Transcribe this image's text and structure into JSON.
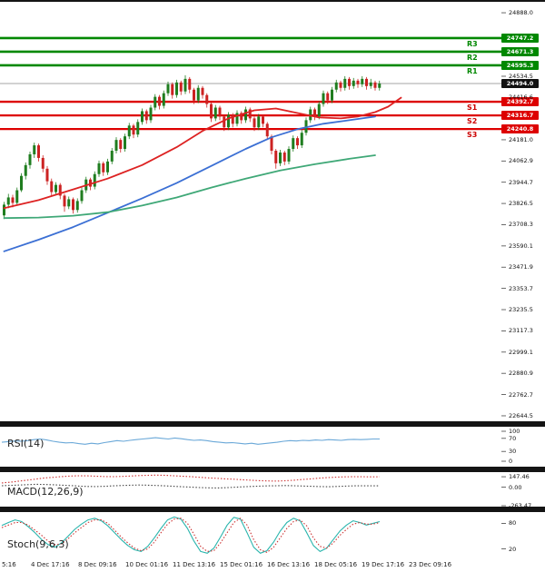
{
  "colors": {
    "bull": "#1f7d1f",
    "bear": "#cc2222",
    "resistance": "#008800",
    "support": "#dd0000",
    "ma_fast": "#dd2222",
    "ma_mid": "#3b6fd4",
    "ma_slow": "#3fa877",
    "rsi": "#6aa8d8",
    "macd_signal": "#cc3333",
    "macd_line": "#444444",
    "stoch_k": "#2ab5ad",
    "stoch_d": "#cc3333",
    "price_badge_bg": "#111111",
    "separator": "#141414"
  },
  "y_axis": {
    "ticks": [
      "24888.0",
      "24534.5",
      "24416.6",
      "24181.0",
      "24062.9",
      "23944.7",
      "23826.5",
      "23708.3",
      "23590.1",
      "23471.9",
      "23353.7",
      "23235.5",
      "23117.3",
      "22999.1",
      "22880.9",
      "22762.7",
      "22644.5"
    ]
  },
  "x_axis": {
    "labels": [
      "5:16",
      "4 Dec 17:16",
      "8 Dec 09:16",
      "10 Dec 01:16",
      "11 Dec 13:16",
      "15 Dec 01:16",
      "16 Dec 13:16",
      "18 Dec 05:16",
      "19 Dec 17:16",
      "23 Dec 09:16"
    ]
  },
  "chart_data": {
    "type": "candlestick",
    "main_panel": {
      "value_range": [
        22614,
        24959
      ],
      "current_price": {
        "text": "24494.0",
        "value": 24494.0
      },
      "levels": {
        "resistance": [
          {
            "label": "R3",
            "value": 24747.2,
            "text": "24747.2"
          },
          {
            "label": "R2",
            "value": 24671.3,
            "text": "24671.3"
          },
          {
            "label": "R1",
            "value": 24595.3,
            "text": "24595.3"
          }
        ],
        "support": [
          {
            "label": "S1",
            "value": 24392.7,
            "text": "24392.7"
          },
          {
            "label": "S2",
            "value": 24316.7,
            "text": "24316.7"
          },
          {
            "label": "S3",
            "value": 24240.8,
            "text": "24240.8"
          }
        ]
      },
      "candles": [
        [
          23760,
          23835,
          23740,
          23820
        ],
        [
          23820,
          23880,
          23800,
          23860
        ],
        [
          23860,
          23875,
          23805,
          23830
        ],
        [
          23830,
          23915,
          23820,
          23900
        ],
        [
          23900,
          23995,
          23890,
          23980
        ],
        [
          23980,
          24055,
          23960,
          24040
        ],
        [
          24040,
          24115,
          24020,
          24100
        ],
        [
          24100,
          24165,
          24080,
          24150
        ],
        [
          24150,
          24160,
          24060,
          24080
        ],
        [
          24080,
          24095,
          24000,
          24020
        ],
        [
          24020,
          24035,
          23930,
          23950
        ],
        [
          23950,
          23965,
          23870,
          23890
        ],
        [
          23890,
          23945,
          23875,
          23930
        ],
        [
          23930,
          23940,
          23850,
          23870
        ],
        [
          23870,
          23880,
          23780,
          23810
        ],
        [
          23810,
          23865,
          23795,
          23850
        ],
        [
          23850,
          23860,
          23770,
          23790
        ],
        [
          23790,
          23855,
          23775,
          23840
        ],
        [
          23840,
          23915,
          23825,
          23900
        ],
        [
          23900,
          23975,
          23885,
          23960
        ],
        [
          23960,
          23970,
          23900,
          23920
        ],
        [
          23920,
          24005,
          23905,
          23990
        ],
        [
          23990,
          24065,
          23975,
          24050
        ],
        [
          24050,
          24060,
          23980,
          24000
        ],
        [
          24000,
          24075,
          23985,
          24060
        ],
        [
          24060,
          24135,
          24045,
          24120
        ],
        [
          24120,
          24195,
          24105,
          24180
        ],
        [
          24180,
          24190,
          24110,
          24130
        ],
        [
          24130,
          24215,
          24115,
          24200
        ],
        [
          24200,
          24275,
          24185,
          24260
        ],
        [
          24260,
          24270,
          24190,
          24210
        ],
        [
          24210,
          24295,
          24195,
          24280
        ],
        [
          24280,
          24355,
          24265,
          24340
        ],
        [
          24340,
          24350,
          24270,
          24290
        ],
        [
          24290,
          24375,
          24275,
          24360
        ],
        [
          24360,
          24435,
          24345,
          24420
        ],
        [
          24420,
          24430,
          24350,
          24370
        ],
        [
          24370,
          24455,
          24355,
          24440
        ],
        [
          24440,
          24505,
          24425,
          24490
        ],
        [
          24490,
          24500,
          24410,
          24430
        ],
        [
          24430,
          24515,
          24415,
          24500
        ],
        [
          24500,
          24510,
          24430,
          24450
        ],
        [
          24450,
          24540,
          24435,
          24520
        ],
        [
          24520,
          24530,
          24440,
          24460
        ],
        [
          24460,
          24470,
          24380,
          24400
        ],
        [
          24400,
          24485,
          24385,
          24470
        ],
        [
          24470,
          24480,
          24410,
          24430
        ],
        [
          24430,
          24440,
          24360,
          24380
        ],
        [
          24380,
          24390,
          24280,
          24300
        ],
        [
          24300,
          24375,
          24285,
          24360
        ],
        [
          24360,
          24370,
          24290,
          24310
        ],
        [
          24310,
          24320,
          24230,
          24250
        ],
        [
          24250,
          24335,
          24235,
          24320
        ],
        [
          24320,
          24330,
          24250,
          24270
        ],
        [
          24270,
          24345,
          24255,
          24330
        ],
        [
          24330,
          24340,
          24270,
          24290
        ],
        [
          24290,
          24365,
          24275,
          24350
        ],
        [
          24350,
          24360,
          24280,
          24300
        ],
        [
          24300,
          24310,
          24230,
          24250
        ],
        [
          24250,
          24325,
          24235,
          24310
        ],
        [
          24310,
          24320,
          24250,
          24270
        ],
        [
          24270,
          24280,
          24180,
          24200
        ],
        [
          24200,
          24210,
          24100,
          24120
        ],
        [
          24120,
          24130,
          24020,
          24050
        ],
        [
          24050,
          24125,
          24035,
          24110
        ],
        [
          24110,
          24120,
          24040,
          24060
        ],
        [
          24060,
          24145,
          24045,
          24130
        ],
        [
          24130,
          24205,
          24115,
          24190
        ],
        [
          24190,
          24200,
          24130,
          24150
        ],
        [
          24150,
          24235,
          24135,
          24220
        ],
        [
          24220,
          24305,
          24205,
          24290
        ],
        [
          24290,
          24365,
          24275,
          24350
        ],
        [
          24350,
          24360,
          24290,
          24310
        ],
        [
          24310,
          24395,
          24295,
          24380
        ],
        [
          24380,
          24455,
          24365,
          24440
        ],
        [
          24440,
          24450,
          24380,
          24400
        ],
        [
          24400,
          24475,
          24385,
          24460
        ],
        [
          24460,
          24515,
          24445,
          24500
        ],
        [
          24500,
          24510,
          24450,
          24470
        ],
        [
          24470,
          24535,
          24455,
          24520
        ],
        [
          24520,
          24530,
          24460,
          24480
        ],
        [
          24480,
          24525,
          24465,
          24510
        ],
        [
          24510,
          24520,
          24470,
          24490
        ],
        [
          24490,
          24535,
          24475,
          24520
        ],
        [
          24520,
          24530,
          24460,
          24480
        ],
        [
          24480,
          24520,
          24465,
          24500
        ],
        [
          24500,
          24510,
          24455,
          24470
        ],
        [
          24470,
          24510,
          24455,
          24494
        ]
      ],
      "moving_averages": [
        {
          "name": "ma-fast-red",
          "color_key": "ma_fast",
          "points": [
            [
              0,
              23800
            ],
            [
              8,
              23845
            ],
            [
              16,
              23905
            ],
            [
              24,
              23965
            ],
            [
              32,
              24040
            ],
            [
              40,
              24140
            ],
            [
              46,
              24230
            ],
            [
              52,
              24300
            ],
            [
              58,
              24345
            ],
            [
              63,
              24355
            ],
            [
              68,
              24330
            ],
            [
              73,
              24305
            ],
            [
              78,
              24300
            ],
            [
              82,
              24310
            ],
            [
              86,
              24335
            ],
            [
              89,
              24365
            ],
            [
              92,
              24415
            ]
          ]
        },
        {
          "name": "ma-mid-blue",
          "color_key": "ma_mid",
          "points": [
            [
              0,
              23560
            ],
            [
              8,
              23625
            ],
            [
              16,
              23695
            ],
            [
              24,
              23775
            ],
            [
              32,
              23855
            ],
            [
              40,
              23940
            ],
            [
              48,
              24035
            ],
            [
              56,
              24130
            ],
            [
              62,
              24195
            ],
            [
              68,
              24240
            ],
            [
              74,
              24270
            ],
            [
              80,
              24290
            ],
            [
              86,
              24310
            ]
          ]
        },
        {
          "name": "ma-slow-green",
          "color_key": "ma_slow",
          "points": [
            [
              0,
              23745
            ],
            [
              8,
              23748
            ],
            [
              16,
              23758
            ],
            [
              24,
              23778
            ],
            [
              32,
              23815
            ],
            [
              40,
              23860
            ],
            [
              48,
              23915
            ],
            [
              56,
              23965
            ],
            [
              64,
              24010
            ],
            [
              72,
              24045
            ],
            [
              80,
              24075
            ],
            [
              86,
              24095
            ]
          ]
        }
      ]
    },
    "indicators": [
      {
        "name": "RSI(14)",
        "range": [
          0,
          100
        ],
        "right_labels": [
          {
            "text": "100",
            "value": 100
          },
          {
            "text": "70",
            "value": 70
          },
          {
            "text": "30",
            "value": 30
          },
          {
            "text": "0",
            "value": 0
          }
        ],
        "series": [
          {
            "style": "solid",
            "color_key": "rsi",
            "values": [
              58,
              60,
              62,
              61,
              63,
              66,
              68,
              65,
              61,
              58,
              56,
              57,
              54,
              52,
              55,
              53,
              57,
              60,
              63,
              61,
              64,
              66,
              68,
              70,
              72,
              70,
              68,
              71,
              69,
              66,
              64,
              65,
              63,
              60,
              58,
              56,
              57,
              55,
              53,
              55,
              52,
              54,
              56,
              58,
              61,
              63,
              62,
              64,
              63,
              65,
              64,
              66,
              65,
              64,
              66,
              67,
              66,
              67,
              68,
              68
            ]
          }
        ]
      },
      {
        "name": "MACD(12,26,9)",
        "range": [
          -263.47,
          200
        ],
        "right_labels": [
          {
            "text": "147.46",
            "value": 147.46
          },
          {
            "text": "0.00",
            "value": 0
          },
          {
            "text": "-263.47",
            "value": -263.47
          }
        ],
        "series": [
          {
            "style": "dashed",
            "color_key": "macd_signal",
            "values": [
              60,
              70,
              85,
              100,
              115,
              130,
              140,
              150,
              158,
              162,
              160,
              155,
              150,
              148,
              152,
              158,
              164,
              168,
              170,
              168,
              162,
              155,
              148,
              140,
              132,
              125,
              118,
              112,
              105,
              98,
              92,
              88,
              85,
              90,
              98,
              108,
              118,
              128,
              136,
              142,
              146,
              148,
              147,
              146,
              147.46
            ]
          },
          {
            "style": "dashed",
            "color_key": "macd_line",
            "values": [
              20,
              25,
              30,
              35,
              40,
              38,
              34,
              28,
              22,
              15,
              10,
              8,
              12,
              18,
              24,
              28,
              30,
              28,
              24,
              18,
              12,
              6,
              0,
              -6,
              -10,
              -12,
              -8,
              -2,
              4,
              10,
              14,
              18,
              20,
              22,
              20,
              16,
              12,
              8,
              6,
              10,
              14,
              18,
              20,
              19,
              18
            ]
          }
        ]
      },
      {
        "name": "Stoch(9,6,3)",
        "range": [
          0,
          100
        ],
        "right_labels": [
          {
            "text": "80",
            "value": 80
          },
          {
            "text": "20",
            "value": 20
          }
        ],
        "series": [
          {
            "style": "solid",
            "color_key": "stoch_k",
            "values": [
              75,
              82,
              88,
              84,
              72,
              58,
              42,
              30,
              24,
              34,
              50,
              66,
              78,
              88,
              92,
              86,
              74,
              58,
              42,
              28,
              18,
              14,
              26,
              46,
              68,
              88,
              95,
              90,
              68,
              38,
              14,
              10,
              22,
              48,
              76,
              94,
              90,
              58,
              24,
              10,
              16,
              36,
              62,
              82,
              92,
              86,
              58,
              28,
              14,
              22,
              42,
              62,
              76,
              86,
              82,
              76,
              80,
              84
            ]
          },
          {
            "style": "dashed",
            "color_key": "stoch_d",
            "values": [
              70,
              76,
              82,
              82,
              76,
              64,
              52,
              38,
              30,
              32,
              44,
              58,
              70,
              82,
              88,
              88,
              80,
              64,
              48,
              34,
              22,
              16,
              20,
              36,
              58,
              78,
              90,
              92,
              80,
              54,
              26,
              14,
              16,
              34,
              58,
              82,
              92,
              76,
              42,
              18,
              12,
              24,
              46,
              68,
              84,
              88,
              74,
              46,
              26,
              22,
              34,
              52,
              66,
              78,
              82,
              78,
              78,
              82
            ]
          }
        ]
      }
    ]
  }
}
